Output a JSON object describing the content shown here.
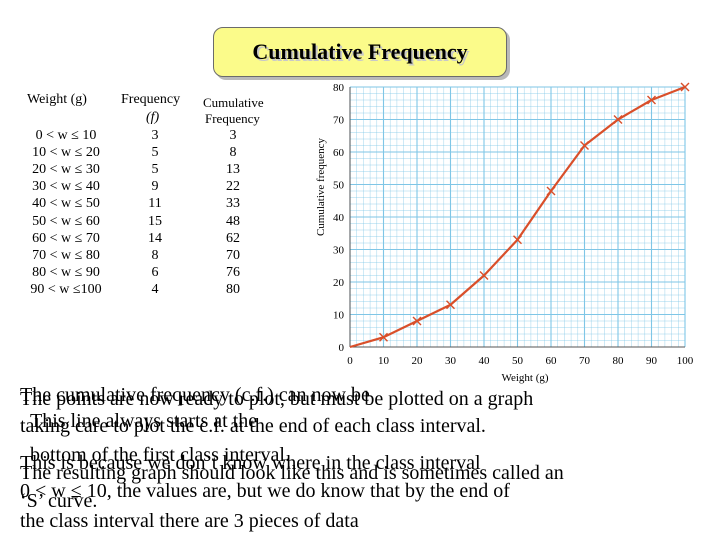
{
  "title": "Cumulative Frequency",
  "table": {
    "headers": {
      "weight": "Weight (g)",
      "frequency": "Frequency",
      "frequency_symbol": "(f)",
      "cumulative_line1": "Cumulative",
      "cumulative_line2": "Frequency"
    },
    "rows": [
      {
        "class": "0 < w ≤ 10",
        "f": "3",
        "cf": "3"
      },
      {
        "class": "10 < w ≤ 20",
        "f": "5",
        "cf": "8"
      },
      {
        "class": "20 < w ≤ 30",
        "f": "5",
        "cf": "13"
      },
      {
        "class": "30 < w ≤ 40",
        "f": "9",
        "cf": "22"
      },
      {
        "class": "40 < w ≤ 50",
        "f": "11",
        "cf": "33"
      },
      {
        "class": "50 < w ≤ 60",
        "f": "15",
        "cf": "48"
      },
      {
        "class": "60 < w ≤ 70",
        "f": "14",
        "cf": "62"
      },
      {
        "class": "70 < w ≤ 80",
        "f": "8",
        "cf": "70"
      },
      {
        "class": "80 < w ≤ 90",
        "f": "6",
        "cf": "76"
      },
      {
        "class": "90 < w ≤100",
        "f": "4",
        "cf": "80"
      }
    ]
  },
  "chart_data": {
    "type": "line",
    "xlabel": "Weight (g)",
    "ylabel": "Cumulative frequency",
    "xlim": [
      0,
      100
    ],
    "ylim": [
      0,
      80
    ],
    "xticks": [
      "0",
      "10",
      "20",
      "30",
      "40",
      "50",
      "60",
      "70",
      "80",
      "90",
      "100"
    ],
    "yticks": [
      "0",
      "10",
      "20",
      "30",
      "40",
      "50",
      "60",
      "70",
      "80"
    ],
    "grid": true,
    "series": [
      {
        "x": [
          0,
          10,
          20,
          30,
          40,
          50,
          60,
          70,
          80,
          90,
          100
        ],
        "y": [
          0,
          3,
          8,
          13,
          22,
          33,
          48,
          62,
          70,
          76,
          80
        ]
      }
    ],
    "colors": {
      "line": "#d94f2a",
      "grid": "#7fc6e6",
      "arrow": "#111111",
      "panel": "#ffffff"
    }
  },
  "text_overlay": {
    "layer1": [
      "The points are now ready to plot, but must be plotted on a graph",
      "taking care to plot the c.f. at the end of each class interval.",
      "This is because we don’t know where in the class interval",
      "0 < w ≤ 10, the values are, but we do know that by the end of",
      "the class interval there are 3 pieces of data"
    ],
    "layer2": [
      "The cumulative frequency (c.f.) can now be",
      "This line always starts at the",
      "bottom of the first class interval.",
      "The resulting graph should look like this and is sometimes called an",
      "‘S’ curve."
    ]
  }
}
